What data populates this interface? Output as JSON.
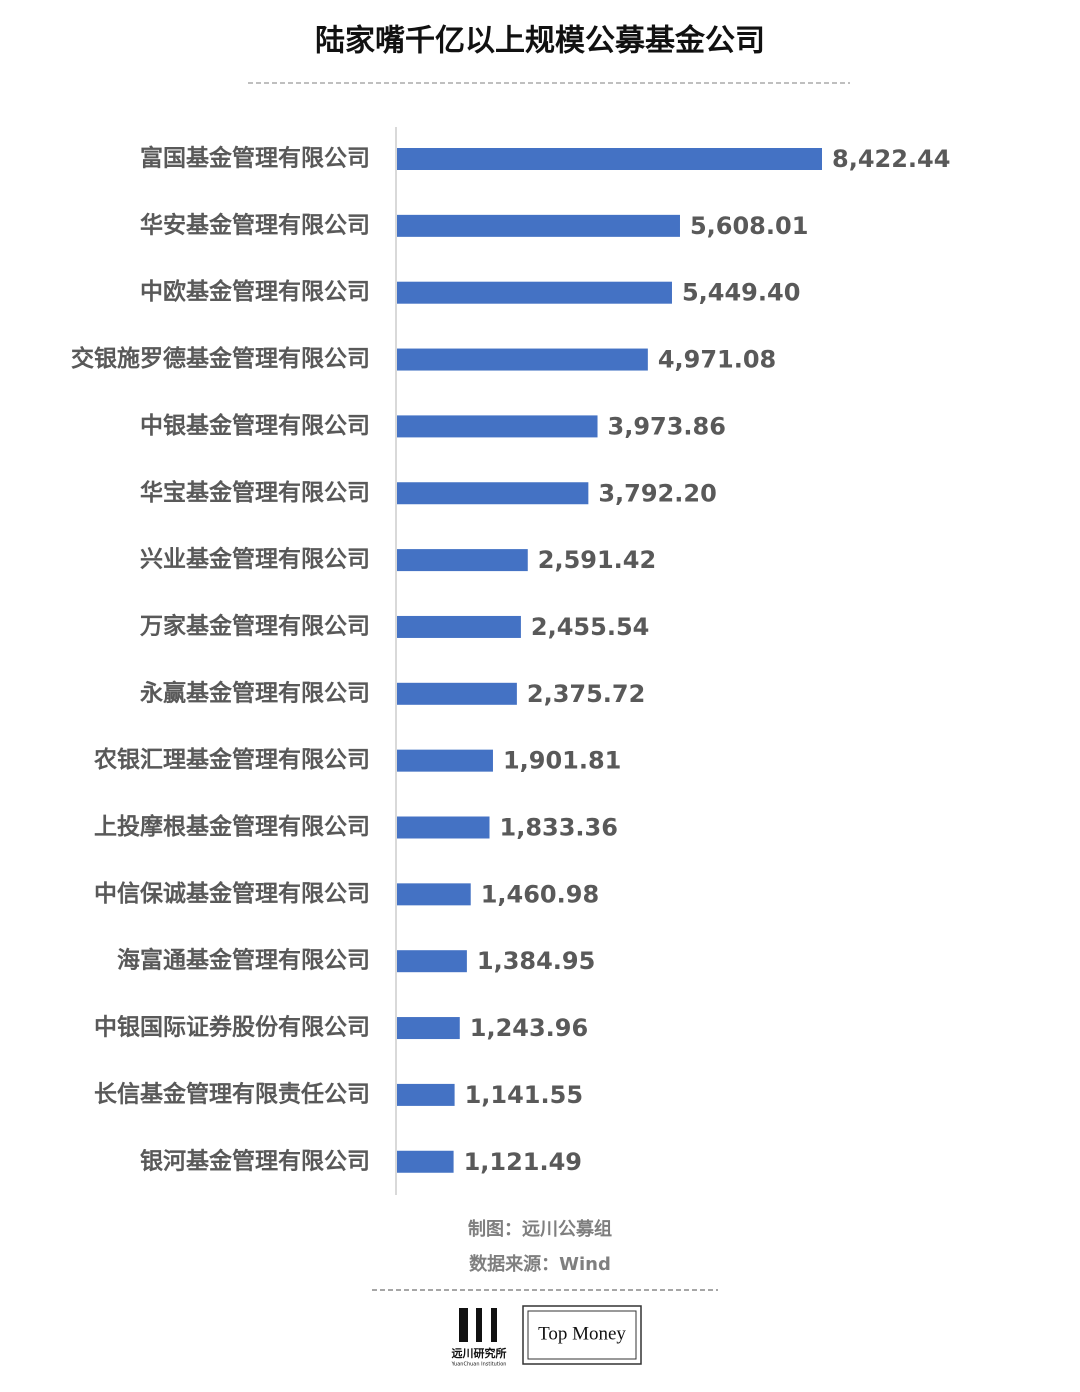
{
  "chart_data": {
    "type": "bar",
    "orientation": "horizontal",
    "title": "陆家嘴千亿以上规模公募基金公司",
    "categories": [
      "富国基金管理有限公司",
      "华安基金管理有限公司",
      "中欧基金管理有限公司",
      "交银施罗德基金管理有限公司",
      "中银基金管理有限公司",
      "华宝基金管理有限公司",
      "兴业基金管理有限公司",
      "万家基金管理有限公司",
      "永赢基金管理有限公司",
      "农银汇理基金管理有限公司",
      "上投摩根基金管理有限公司",
      "中信保诚基金管理有限公司",
      "海富通基金管理有限公司",
      "中银国际证券股份有限公司",
      "长信基金管理有限责任公司",
      "银河基金管理有限公司"
    ],
    "values": [
      8422.44,
      5608.01,
      5449.4,
      4971.08,
      3973.86,
      3792.2,
      2591.42,
      2455.54,
      2375.72,
      1901.81,
      1833.36,
      1460.98,
      1384.95,
      1243.96,
      1141.55,
      1121.49
    ],
    "value_labels": [
      "8,422.44",
      "5,608.01",
      "5,449.40",
      "4,971.08",
      "3,973.86",
      "3,792.20",
      "2,591.42",
      "2,455.54",
      "2,375.72",
      "1,901.81",
      "1,833.36",
      "1,460.98",
      "1,384.95",
      "1,243.96",
      "1,141.55",
      "1,121.49"
    ],
    "color": "#4472c4",
    "credit": "制图：远川公募组",
    "source": "数据来源：Wind",
    "logos": [
      "远川研究所",
      "YuanChuan Institution",
      "Top Money"
    ]
  }
}
